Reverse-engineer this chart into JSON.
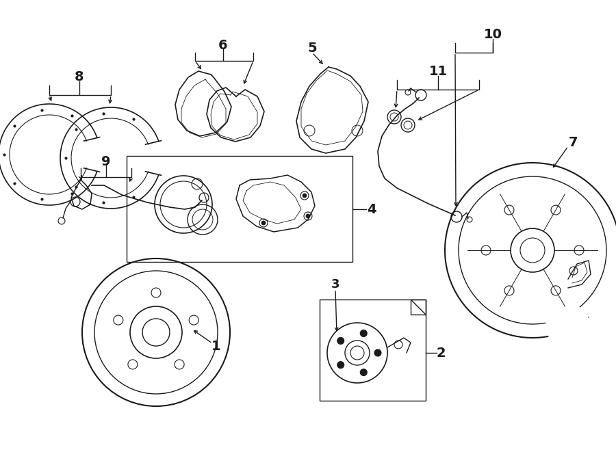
{
  "bg_color": "#ffffff",
  "line_color": "#1a1a1a",
  "figsize": [
    9.0,
    6.61
  ],
  "dpi": 100,
  "xlim": [
    0,
    900
  ],
  "ylim": [
    0,
    661
  ]
}
